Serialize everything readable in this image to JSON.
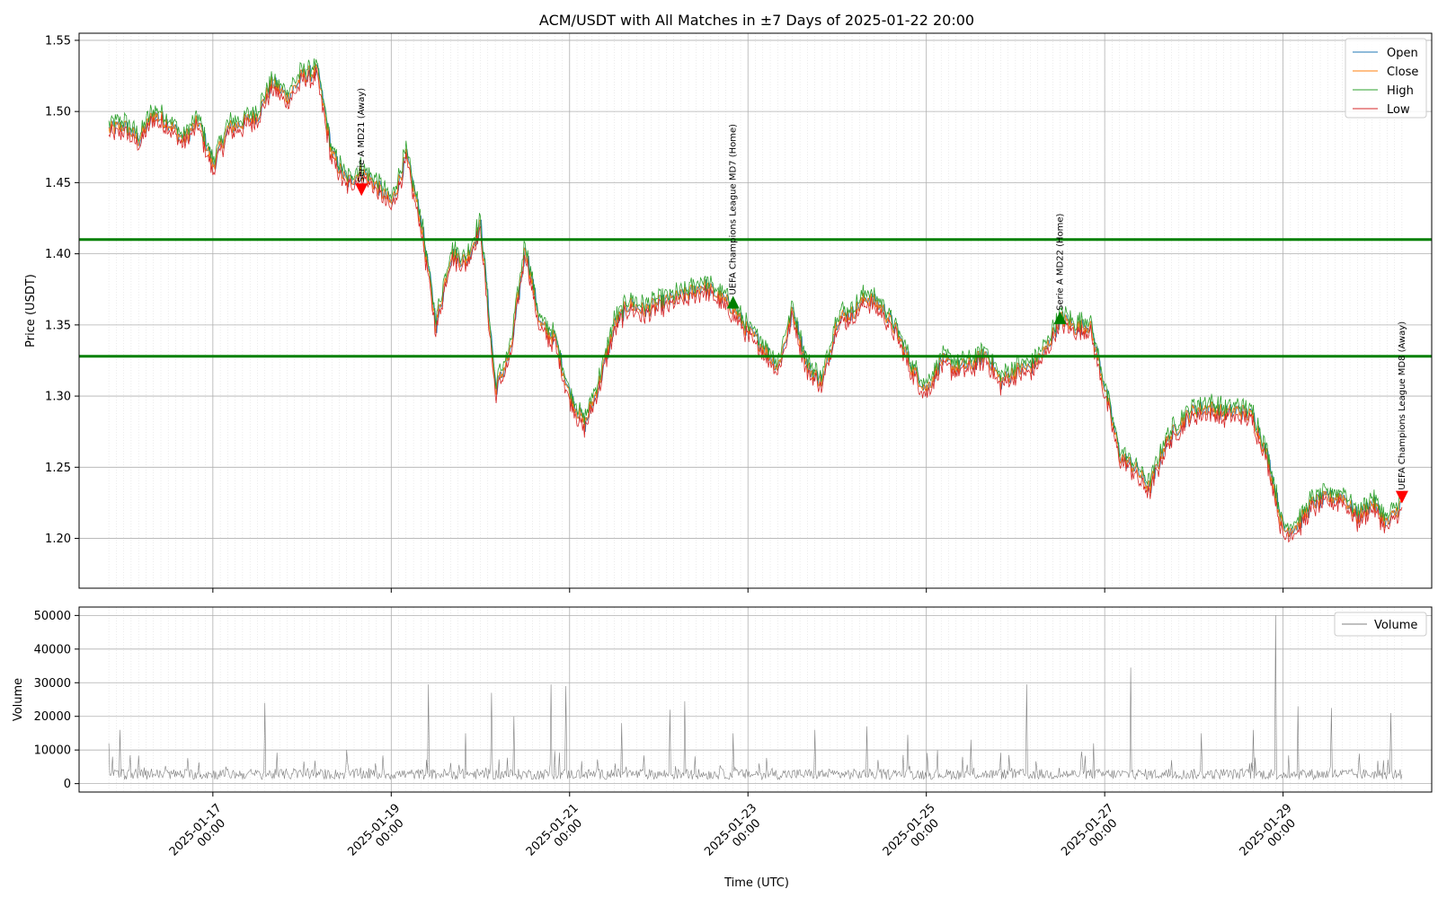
{
  "chart_data": [
    {
      "type": "line",
      "title": "ACM/USDT with All Matches in ±7 Days of 2025-01-22 20:00",
      "xlabel": "Time (UTC)",
      "ylabel": "Price (USDT)",
      "ylim": [
        1.165,
        1.555
      ],
      "yticks": [
        "1.20",
        "1.25",
        "1.30",
        "1.35",
        "1.40",
        "1.45",
        "1.50",
        "1.55"
      ],
      "xticks": [
        "2025-01-17 00:00",
        "2025-01-19 00:00",
        "2025-01-21 00:00",
        "2025-01-23 00:00",
        "2025-01-25 00:00",
        "2025-01-27 00:00",
        "2025-01-29 00:00"
      ],
      "xlim": [
        "2025-01-15 12:00",
        "2025-01-30 16:00"
      ],
      "grid": true,
      "legend": "top-right",
      "series": [
        {
          "name": "Open",
          "color": "#1f77b4"
        },
        {
          "name": "Close",
          "color": "#ff7f0e"
        },
        {
          "name": "High",
          "color": "#2ca02c"
        },
        {
          "name": "Low",
          "color": "#d62728"
        }
      ],
      "close_points": [
        [
          "2025-01-15 20:00",
          1.487
        ],
        [
          "2025-01-16 00:00",
          1.49
        ],
        [
          "2025-01-16 04:00",
          1.48
        ],
        [
          "2025-01-16 08:00",
          1.498
        ],
        [
          "2025-01-16 12:00",
          1.492
        ],
        [
          "2025-01-16 16:00",
          1.48
        ],
        [
          "2025-01-16 20:00",
          1.493
        ],
        [
          "2025-01-17 00:00",
          1.462
        ],
        [
          "2025-01-17 04:00",
          1.488
        ],
        [
          "2025-01-17 08:00",
          1.492
        ],
        [
          "2025-01-17 12:00",
          1.498
        ],
        [
          "2025-01-17 16:00",
          1.52
        ],
        [
          "2025-01-17 20:00",
          1.51
        ],
        [
          "2025-01-18 00:00",
          1.525
        ],
        [
          "2025-01-18 04:00",
          1.528
        ],
        [
          "2025-01-18 08:00",
          1.47
        ],
        [
          "2025-01-18 12:00",
          1.45
        ],
        [
          "2025-01-18 16:00",
          1.458
        ],
        [
          "2025-01-18 20:00",
          1.448
        ],
        [
          "2025-01-19 00:00",
          1.435
        ],
        [
          "2025-01-19 04:00",
          1.468
        ],
        [
          "2025-01-19 08:00",
          1.422
        ],
        [
          "2025-01-19 12:00",
          1.35
        ],
        [
          "2025-01-19 16:00",
          1.4
        ],
        [
          "2025-01-19 20:00",
          1.395
        ],
        [
          "2025-01-20 00:00",
          1.42
        ],
        [
          "2025-01-20 04:00",
          1.305
        ],
        [
          "2025-01-20 08:00",
          1.33
        ],
        [
          "2025-01-20 12:00",
          1.405
        ],
        [
          "2025-01-20 16:00",
          1.35
        ],
        [
          "2025-01-20 20:00",
          1.34
        ],
        [
          "2025-01-21 00:00",
          1.3
        ],
        [
          "2025-01-21 04:00",
          1.28
        ],
        [
          "2025-01-21 08:00",
          1.31
        ],
        [
          "2025-01-21 12:00",
          1.35
        ],
        [
          "2025-01-21 16:00",
          1.365
        ],
        [
          "2025-01-21 20:00",
          1.36
        ],
        [
          "2025-01-22 00:00",
          1.365
        ],
        [
          "2025-01-22 04:00",
          1.368
        ],
        [
          "2025-01-22 08:00",
          1.372
        ],
        [
          "2025-01-22 12:00",
          1.378
        ],
        [
          "2025-01-22 20:00",
          1.362
        ],
        [
          "2025-01-23 00:00",
          1.345
        ],
        [
          "2025-01-23 04:00",
          1.335
        ],
        [
          "2025-01-23 08:00",
          1.32
        ],
        [
          "2025-01-23 12:00",
          1.36
        ],
        [
          "2025-01-23 16:00",
          1.32
        ],
        [
          "2025-01-23 20:00",
          1.31
        ],
        [
          "2025-01-24 00:00",
          1.355
        ],
        [
          "2025-01-24 04:00",
          1.358
        ],
        [
          "2025-01-24 08:00",
          1.37
        ],
        [
          "2025-01-24 12:00",
          1.362
        ],
        [
          "2025-01-24 16:00",
          1.345
        ],
        [
          "2025-01-24 20:00",
          1.32
        ],
        [
          "2025-01-25 00:00",
          1.305
        ],
        [
          "2025-01-25 04:00",
          1.325
        ],
        [
          "2025-01-25 08:00",
          1.32
        ],
        [
          "2025-01-25 12:00",
          1.322
        ],
        [
          "2025-01-25 16:00",
          1.33
        ],
        [
          "2025-01-25 20:00",
          1.31
        ],
        [
          "2025-01-26 00:00",
          1.318
        ],
        [
          "2025-01-26 04:00",
          1.32
        ],
        [
          "2025-01-26 08:00",
          1.332
        ],
        [
          "2025-01-26 12:00",
          1.355
        ],
        [
          "2025-01-26 16:00",
          1.348
        ],
        [
          "2025-01-26 20:00",
          1.35
        ],
        [
          "2025-01-27 00:00",
          1.305
        ],
        [
          "2025-01-27 04:00",
          1.258
        ],
        [
          "2025-01-27 08:00",
          1.25
        ],
        [
          "2025-01-27 12:00",
          1.235
        ],
        [
          "2025-01-27 16:00",
          1.265
        ],
        [
          "2025-01-27 20:00",
          1.28
        ],
        [
          "2025-01-28 00:00",
          1.29
        ],
        [
          "2025-01-28 04:00",
          1.292
        ],
        [
          "2025-01-28 08:00",
          1.288
        ],
        [
          "2025-01-28 12:00",
          1.29
        ],
        [
          "2025-01-28 16:00",
          1.285
        ],
        [
          "2025-01-28 20:00",
          1.255
        ],
        [
          "2025-01-29 00:00",
          1.205
        ],
        [
          "2025-01-29 04:00",
          1.21
        ],
        [
          "2025-01-29 08:00",
          1.225
        ],
        [
          "2025-01-29 12:00",
          1.228
        ],
        [
          "2025-01-29 16:00",
          1.23
        ],
        [
          "2025-01-29 20:00",
          1.215
        ],
        [
          "2025-01-30 00:00",
          1.225
        ],
        [
          "2025-01-30 04:00",
          1.21
        ],
        [
          "2025-01-30 08:00",
          1.225
        ]
      ],
      "hlines": [
        {
          "y": 1.41,
          "color": "#008000"
        },
        {
          "y": 1.328,
          "color": "#008000"
        }
      ],
      "markers": [
        {
          "time": "2025-01-18 16:00",
          "y": 1.445,
          "label": "Serie A MD21 (Away)",
          "color": "#ff0000",
          "shape": "down"
        },
        {
          "time": "2025-01-22 20:00",
          "y": 1.366,
          "label": "UEFA Champions League MD7 (Home)",
          "color": "#008000",
          "shape": "up"
        },
        {
          "time": "2025-01-26 12:00",
          "y": 1.355,
          "label": "Serie A MD22 (Home)",
          "color": "#008000",
          "shape": "up"
        },
        {
          "time": "2025-01-30 08:00",
          "y": 1.229,
          "label": "UEFA Champions League MD8 (Away)",
          "color": "#ff0000",
          "shape": "down"
        }
      ]
    },
    {
      "type": "line",
      "ylabel": "Volume",
      "ylim": [
        -2500,
        52500
      ],
      "yticks": [
        "0",
        "10000",
        "20000",
        "30000",
        "40000",
        "50000"
      ],
      "grid": true,
      "legend": "top-right",
      "series": [
        {
          "name": "Volume",
          "color": "#808080"
        }
      ],
      "baseline": 3500,
      "spikes": [
        [
          "2025-01-15 20:00",
          12000
        ],
        [
          "2025-01-15 23:00",
          16000
        ],
        [
          "2025-01-17 14:00",
          24000
        ],
        [
          "2025-01-18 12:00",
          10000
        ],
        [
          "2025-01-19 10:00",
          29500
        ],
        [
          "2025-01-19 20:00",
          15000
        ],
        [
          "2025-01-20 03:00",
          27000
        ],
        [
          "2025-01-20 09:00",
          20000
        ],
        [
          "2025-01-20 19:00",
          29500
        ],
        [
          "2025-01-20 23:00",
          29000
        ],
        [
          "2025-01-21 14:00",
          18000
        ],
        [
          "2025-01-22 03:00",
          22000
        ],
        [
          "2025-01-22 07:00",
          24500
        ],
        [
          "2025-01-22 20:00",
          15000
        ],
        [
          "2025-01-23 18:00",
          16000
        ],
        [
          "2025-01-24 08:00",
          17000
        ],
        [
          "2025-01-24 19:00",
          14500
        ],
        [
          "2025-01-25 12:00",
          13000
        ],
        [
          "2025-01-26 03:00",
          29500
        ],
        [
          "2025-01-26 21:00",
          12000
        ],
        [
          "2025-01-27 07:00",
          34500
        ],
        [
          "2025-01-28 02:00",
          15000
        ],
        [
          "2025-01-28 16:00",
          16000
        ],
        [
          "2025-01-28 22:00",
          50000
        ],
        [
          "2025-01-29 04:00",
          23000
        ],
        [
          "2025-01-29 13:00",
          22500
        ],
        [
          "2025-01-30 05:00",
          21000
        ]
      ]
    }
  ]
}
